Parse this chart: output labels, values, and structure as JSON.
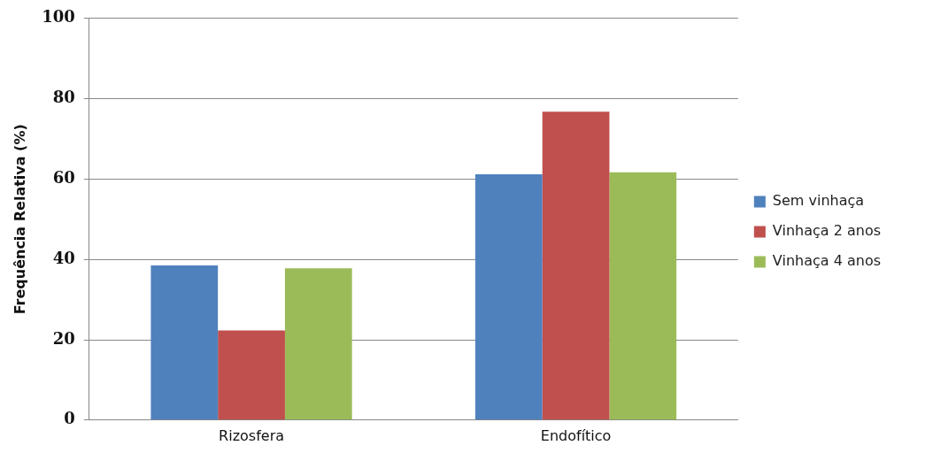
{
  "chart_data": {
    "type": "bar",
    "ylabel": "Frequência Relativa (%)",
    "categories": [
      "Rizosfera",
      "Endofítico"
    ],
    "series": [
      {
        "name": "Sem vinhaça",
        "color": "#4f81bd",
        "values": [
          38.5,
          61.2
        ]
      },
      {
        "name": "Vinhaça 2 anos",
        "color": "#c0504d",
        "values": [
          22.3,
          76.8
        ]
      },
      {
        "name": "Vinhaça 4 anos",
        "color": "#9bbb59",
        "values": [
          37.8,
          61.7
        ]
      }
    ],
    "ylim": [
      0,
      100
    ],
    "yticks": [
      0,
      20,
      40,
      60,
      80,
      100
    ],
    "grid": "y",
    "legend": "right"
  }
}
